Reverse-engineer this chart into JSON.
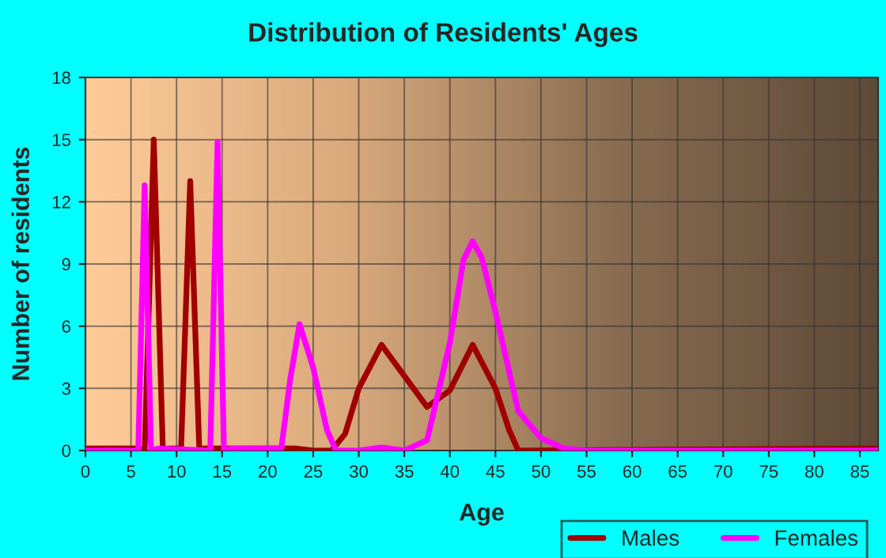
{
  "chart_data": {
    "type": "line",
    "title": "Distribution of Residents' Ages",
    "xlabel": "Age",
    "ylabel": "Number of residents",
    "xlim": [
      0,
      87
    ],
    "xticks": [
      0,
      5,
      10,
      15,
      20,
      25,
      30,
      35,
      40,
      45,
      50,
      55,
      60,
      65,
      70,
      75,
      80,
      85
    ],
    "ylim": [
      0,
      18
    ],
    "yticks": [
      0,
      3,
      6,
      9,
      12,
      15,
      18
    ],
    "grid": true,
    "legend": "bottom right",
    "marker": "none",
    "line_style": "solid",
    "series": [
      {
        "name": "Males",
        "color": "#a00000",
        "x": [
          0,
          5.5,
          6.5,
          7.5,
          8.5,
          9,
          10.5,
          11.5,
          12.5,
          13,
          23,
          25,
          27,
          28.5,
          30,
          32.5,
          35,
          37.5,
          40,
          42.5,
          45,
          46.5,
          47.5,
          87
        ],
        "values": [
          0.1,
          0.1,
          0,
          15,
          0,
          0.1,
          0.1,
          13,
          0,
          0.1,
          0.1,
          0,
          0,
          0.8,
          3,
          5.1,
          3.6,
          2.1,
          2.9,
          5.1,
          3,
          1,
          0,
          0.1
        ]
      },
      {
        "name": "Females",
        "color": "#ff00ff",
        "x": [
          0,
          5.8,
          6.5,
          7.2,
          8,
          13.7,
          14.5,
          15.2,
          16,
          21.5,
          22.5,
          23.5,
          25,
          26.5,
          27.5,
          30,
          32.5,
          35,
          37.5,
          40,
          41.5,
          42.5,
          43.5,
          45,
          47.5,
          50,
          52.5,
          55,
          87
        ],
        "values": [
          0,
          0,
          12.8,
          0,
          0.1,
          0,
          14.9,
          0,
          0.1,
          0.1,
          3.5,
          6.1,
          4,
          1,
          0,
          0,
          0.15,
          0,
          0.5,
          5.2,
          9.2,
          10.1,
          9.3,
          6.7,
          1.9,
          0.6,
          0.1,
          0,
          0
        ]
      }
    ]
  }
}
